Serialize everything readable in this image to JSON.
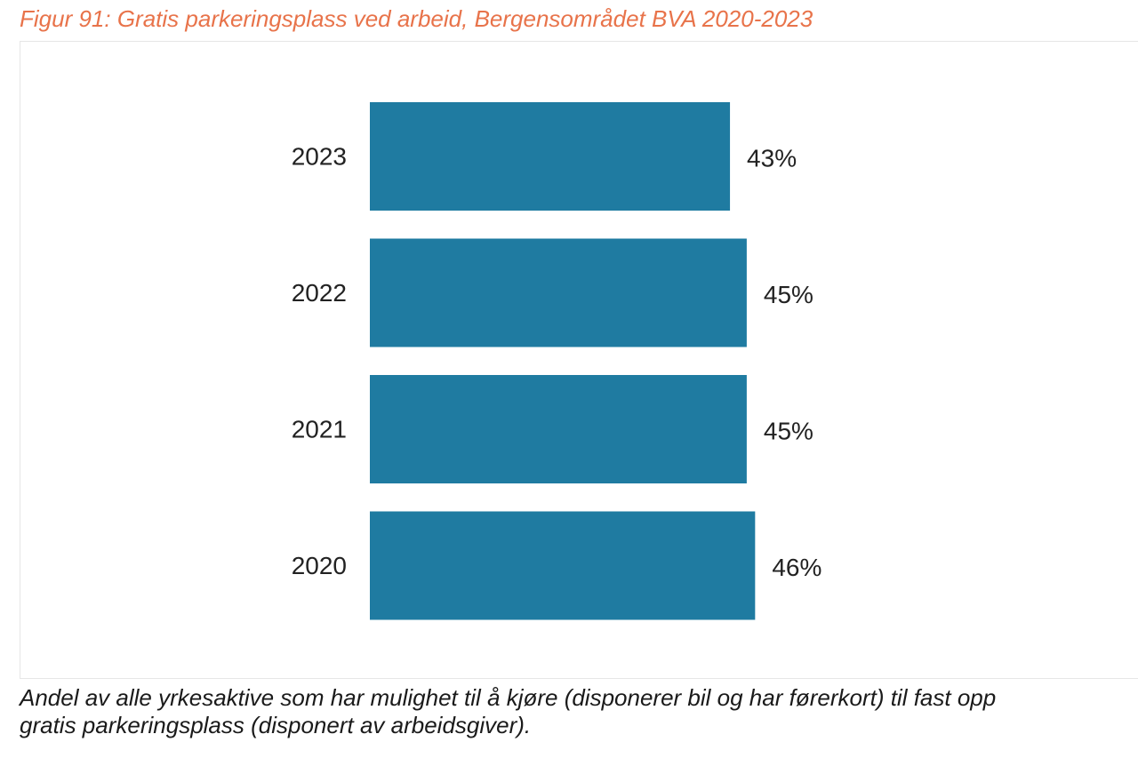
{
  "figure": {
    "title": "Figur 91: Gratis parkeringsplass ved arbeid, Bergensområdet BVA 2020-2023",
    "caption_line1": "Andel av alle yrkesaktive som har mulighet til å kjøre (disponerer bil og har førerkort) til fast opp",
    "caption_line2": "gratis parkeringsplass (disponert av arbeidsgiver)."
  },
  "colors": {
    "bar": "#1F7BA1",
    "title": "#E8734A"
  },
  "chart_data": {
    "type": "bar",
    "orientation": "horizontal",
    "title": "Figur 91: Gratis parkeringsplass ved arbeid, Bergensområdet BVA 2020-2023",
    "categories": [
      "2023",
      "2022",
      "2021",
      "2020"
    ],
    "values": [
      43,
      45,
      45,
      46
    ],
    "value_labels": [
      "43%",
      "45%",
      "45%",
      "46%"
    ],
    "unit": "%",
    "xlabel": "",
    "ylabel": "",
    "xlim": [
      0,
      100
    ],
    "grid": false,
    "legend": "none"
  }
}
